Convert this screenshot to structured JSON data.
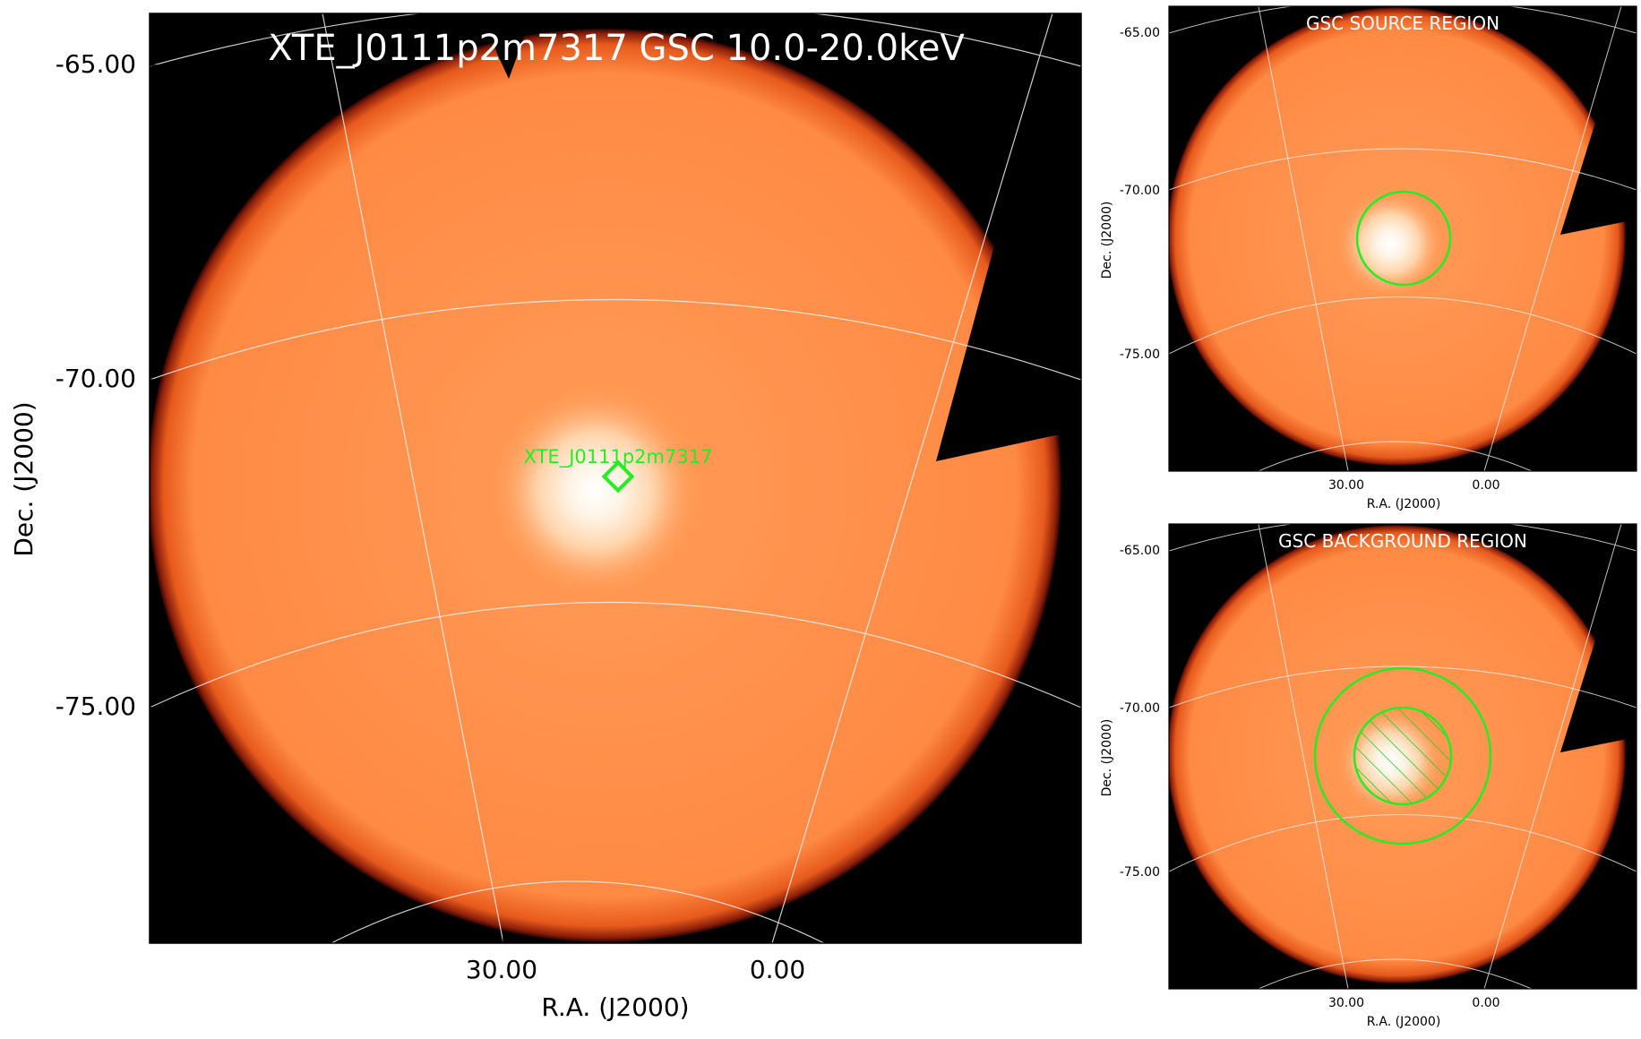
{
  "main_panel": {
    "title": "XTE_J0111p2m7317 GSC 10.0-20.0keV",
    "ylabel": "Dec. (J2000)",
    "xlabel": "R.A. (J2000)",
    "yticks": [
      "-65.00",
      "-70.00",
      "-75.00"
    ],
    "xticks": [
      "30.00",
      "0.00"
    ],
    "source_label": "XTE_J0111p2m7317"
  },
  "source_panel": {
    "title": "GSC SOURCE REGION",
    "ylabel": "Dec. (J2000)",
    "xlabel": "R.A. (J2000)",
    "yticks": [
      "-65.00",
      "-70.00",
      "-75.00"
    ],
    "xticks": [
      "30.00",
      "0.00"
    ]
  },
  "background_panel": {
    "title": "GSC BACKGROUND REGION",
    "ylabel": "Dec. (J2000)",
    "xlabel": "R.A. (J2000)",
    "yticks": [
      "-65.00",
      "-70.00",
      "-75.00"
    ],
    "xticks": [
      "30.00",
      "0.00"
    ]
  },
  "colors": {
    "background": "#000000",
    "emission": "#ff8c42",
    "bright_core": "#ffffff",
    "region_marker": "#22ee22",
    "grid": "#f0f0f0",
    "title_text": "#ffffff"
  }
}
